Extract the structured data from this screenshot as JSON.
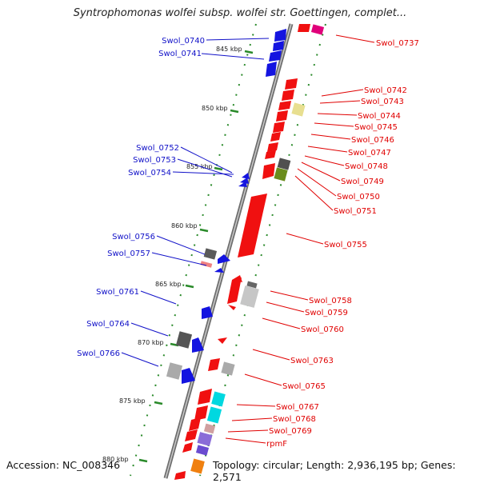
{
  "title": "Syntrophomonas wolfei subsp. wolfei str. Goettingen, complet...",
  "footer": {
    "accession": "Accession: NC_008346",
    "topology": "Topology: circular; Length: 2,936,195 bp; Genes: 2,571"
  },
  "colors": {
    "forward_label": "#1010c8",
    "reverse_label": "#e00000",
    "tick": "#2a8a2a",
    "backbone": "#7a7a7a"
  },
  "scale_labels": [
    "845 kbp",
    "850 kbp",
    "855 kbp",
    "860 kbp",
    "865 kbp",
    "870 kbp",
    "875 kbp",
    "880 kbp"
  ],
  "left_genes": [
    "Swol_0740",
    "Swol_0741",
    "Swol_0752",
    "Swol_0753",
    "Swol_0754",
    "Swol_0756",
    "Swol_0757",
    "Swol_0761",
    "Swol_0764",
    "Swol_0766"
  ],
  "right_genes": [
    "Swol_0737",
    "Swol_0742",
    "Swol_0743",
    "Swol_0744",
    "Swol_0745",
    "Swol_0746",
    "Swol_0747",
    "Swol_0748",
    "Swol_0749",
    "Swol_0750",
    "Swol_0751",
    "Swol_0755",
    "Swol_0758",
    "Swol_0759",
    "Swol_0760",
    "Swol_0763",
    "Swol_0765",
    "Swol_0767",
    "Swol_0768",
    "Swol_0769",
    "rpmF"
  ]
}
